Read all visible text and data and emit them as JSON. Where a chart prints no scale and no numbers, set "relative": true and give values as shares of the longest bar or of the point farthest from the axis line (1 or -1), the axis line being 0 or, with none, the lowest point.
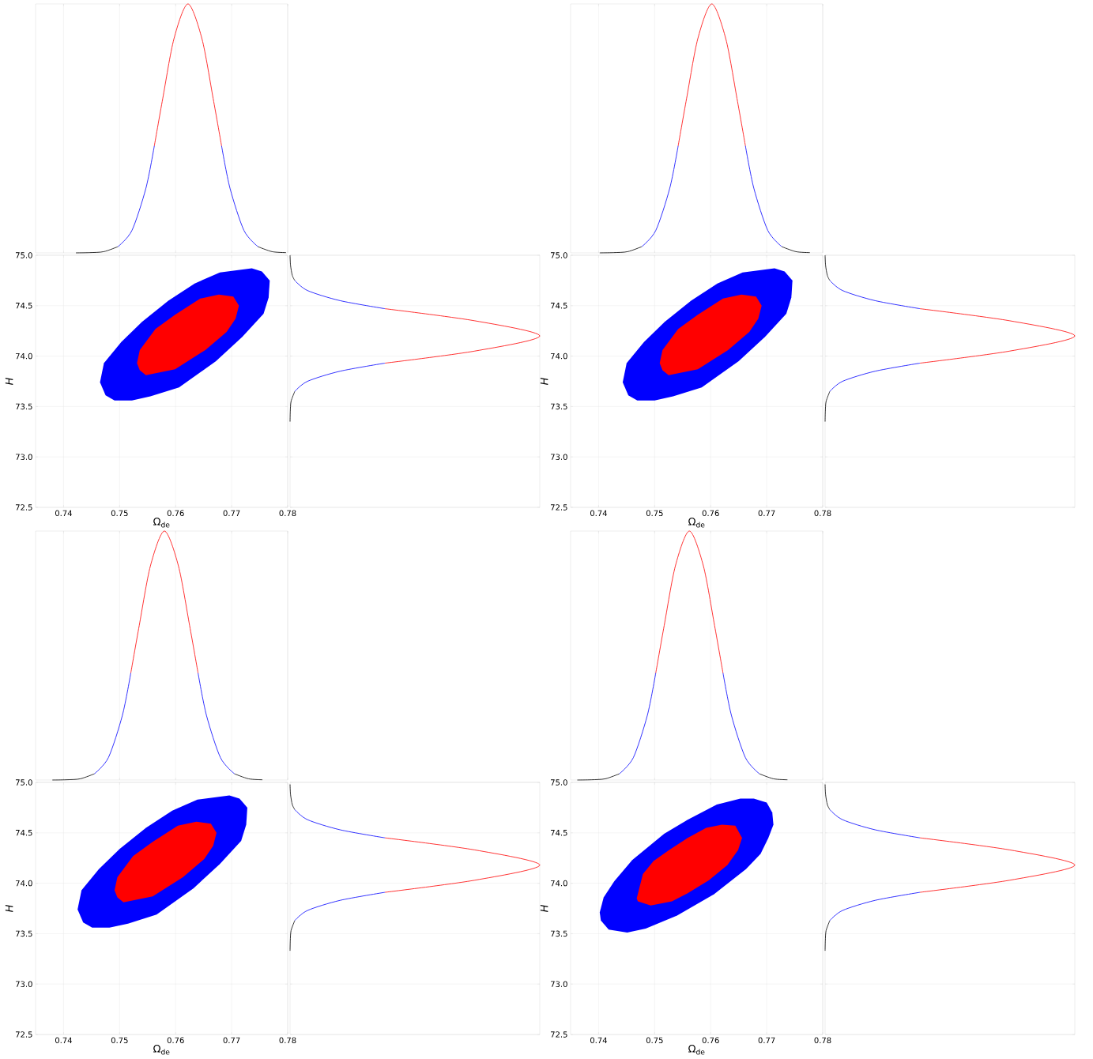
{
  "chart_data": [
    {
      "type": "line",
      "relative": true,
      "xlim": [
        0.735,
        0.78
      ],
      "xticks": [
        0.74,
        0.75,
        0.76,
        0.77,
        0.78
      ],
      "tick_labels": false,
      "grid": "x",
      "x": [
        0.7422,
        0.7447,
        0.7472,
        0.7497,
        0.7522,
        0.7547,
        0.7562,
        0.7577,
        0.7597,
        0.7622,
        0.7647,
        0.7667,
        0.7682,
        0.7697,
        0.7722,
        0.7747,
        0.7772,
        0.7797
      ],
      "series": [
        {
          "color": "#000000",
          "values": [
            0,
            0.001,
            0.005,
            0.025,
            null,
            null,
            null,
            null,
            null,
            null,
            null,
            null,
            null,
            null,
            null,
            0.025,
            0.005,
            0.001
          ]
        },
        {
          "color": "#0000ff",
          "values": [
            null,
            null,
            null,
            0.025,
            0.09,
            0.26,
            0.43,
            null,
            null,
            null,
            null,
            null,
            0.43,
            0.26,
            0.09,
            0.025,
            null,
            null
          ]
        },
        {
          "color": "#ff0000",
          "values": [
            null,
            null,
            null,
            null,
            null,
            null,
            0.43,
            0.62,
            0.86,
            1,
            0.86,
            0.62,
            0.43,
            null,
            null,
            null,
            null,
            null
          ]
        }
      ]
    },
    {
      "type": "area",
      "xlabel": "Ω$_{de}$",
      "ylabel": "H",
      "xlim": [
        0.735,
        0.78
      ],
      "ylim": [
        72.5,
        75.0
      ],
      "xticks": [
        0.74,
        0.75,
        0.76,
        0.77,
        0.78
      ],
      "yticks": [
        72.5,
        {
          "value": 73,
          "label": "73.0"
        },
        73.5,
        {
          "value": 74,
          "label": "74.0"
        },
        74.5,
        {
          "value": 75,
          "label": "75.0"
        }
      ],
      "grid": true,
      "series": [
        {
          "color": "#0000ff",
          "x": [
            0.7465,
            0.7472,
            0.7503,
            0.754,
            0.7587,
            0.7634,
            0.7679,
            0.7736,
            0.7754,
            0.7768,
            0.7766,
            0.7757,
            0.7719,
            0.7672,
            0.7606,
            0.7555,
            0.7522,
            0.7491,
            0.7475
          ],
          "values": [
            73.74,
            73.93,
            74.14,
            74.34,
            74.55,
            74.72,
            74.83,
            74.87,
            74.84,
            74.75,
            74.58,
            74.42,
            74.19,
            73.95,
            73.69,
            73.6,
            73.56,
            73.56,
            73.61
          ]
        },
        {
          "color": "#ff0000",
          "x": [
            0.7531,
            0.7536,
            0.7564,
            0.7599,
            0.7644,
            0.7677,
            0.7703,
            0.7713,
            0.7707,
            0.7691,
            0.7653,
            0.7599,
            0.7573,
            0.7547,
            0.7536
          ],
          "values": [
            73.93,
            74.06,
            74.27,
            74.41,
            74.57,
            74.61,
            74.59,
            74.5,
            74.37,
            74.24,
            74.06,
            73.87,
            73.84,
            73.81,
            73.86
          ]
        }
      ]
    },
    {
      "type": "line",
      "orientation": "horizontal",
      "relative": true,
      "ylim": [
        72.5,
        75.0
      ],
      "yticks": [
        72.5,
        73,
        73.5,
        74,
        74.5,
        75
      ],
      "tick_labels": false,
      "grid": "y",
      "x": [
        75.0,
        74.9,
        74.8,
        74.75,
        74.65,
        74.55,
        74.47,
        74.35,
        74.2,
        74.05,
        73.93,
        73.85,
        73.75,
        73.65,
        73.55,
        73.45,
        73.35
      ],
      "series": [
        {
          "color": "#000000",
          "values": [
            0,
            0.002,
            0.009,
            0.019,
            null,
            null,
            null,
            null,
            null,
            null,
            null,
            null,
            null,
            0.019,
            0.004,
            0.001,
            0
          ]
        },
        {
          "color": "#0000ff",
          "values": [
            null,
            null,
            null,
            0.019,
            0.07,
            0.2,
            0.38,
            null,
            null,
            null,
            0.38,
            0.2,
            0.07,
            0.019,
            null,
            null,
            null
          ]
        },
        {
          "color": "#ff0000",
          "values": [
            null,
            null,
            null,
            null,
            null,
            null,
            0.38,
            0.74,
            1,
            0.74,
            0.38,
            null,
            null,
            null,
            null,
            null,
            null
          ]
        }
      ]
    },
    {
      "type": "line",
      "relative": true,
      "xlim": [
        0.735,
        0.78
      ],
      "xticks": [
        0.74,
        0.75,
        0.76,
        0.77,
        0.78
      ],
      "tick_labels": false,
      "grid": "x",
      "x": [
        0.7402,
        0.7427,
        0.7452,
        0.7477,
        0.7502,
        0.7527,
        0.7542,
        0.7557,
        0.7577,
        0.7602,
        0.7627,
        0.7647,
        0.7662,
        0.7677,
        0.7702,
        0.7727,
        0.7752,
        0.7777
      ],
      "series": [
        {
          "color": "#000000",
          "values": [
            0,
            0.001,
            0.005,
            0.025,
            null,
            null,
            null,
            null,
            null,
            null,
            null,
            null,
            null,
            null,
            null,
            0.025,
            0.005,
            0.001
          ]
        },
        {
          "color": "#0000ff",
          "values": [
            null,
            null,
            null,
            0.025,
            0.09,
            0.26,
            0.43,
            null,
            null,
            null,
            null,
            null,
            0.43,
            0.26,
            0.09,
            0.025,
            null,
            null
          ]
        },
        {
          "color": "#ff0000",
          "values": [
            null,
            null,
            null,
            null,
            null,
            null,
            0.43,
            0.62,
            0.86,
            1,
            0.86,
            0.62,
            0.43,
            null,
            null,
            null,
            null,
            null
          ]
        }
      ]
    },
    {
      "type": "area",
      "xlabel": "Ω$_{de}$",
      "ylabel": "H",
      "xlim": [
        0.735,
        0.78
      ],
      "ylim": [
        72.5,
        75.0
      ],
      "xticks": [
        0.74,
        0.75,
        0.76,
        0.77,
        0.78
      ],
      "yticks": [
        72.5,
        {
          "value": 73,
          "label": "73.0"
        },
        73.5,
        {
          "value": 74,
          "label": "74.0"
        },
        74.5,
        {
          "value": 75,
          "label": "75.0"
        }
      ],
      "grid": true,
      "series": [
        {
          "color": "#0000ff",
          "x": [
            0.7443,
            0.745,
            0.7481,
            0.7518,
            0.7565,
            0.7612,
            0.7657,
            0.7714,
            0.7732,
            0.7746,
            0.7744,
            0.7735,
            0.7697,
            0.765,
            0.7584,
            0.7533,
            0.75,
            0.7469,
            0.7453
          ],
          "values": [
            73.74,
            73.93,
            74.14,
            74.34,
            74.55,
            74.72,
            74.83,
            74.87,
            74.84,
            74.75,
            74.58,
            74.42,
            74.19,
            73.95,
            73.69,
            73.6,
            73.56,
            73.56,
            73.61
          ]
        },
        {
          "color": "#ff0000",
          "x": [
            0.7509,
            0.7514,
            0.7542,
            0.7577,
            0.7622,
            0.7655,
            0.7681,
            0.7691,
            0.7685,
            0.7669,
            0.7631,
            0.7577,
            0.7551,
            0.7525,
            0.7514
          ],
          "values": [
            73.93,
            74.06,
            74.27,
            74.41,
            74.57,
            74.61,
            74.59,
            74.5,
            74.37,
            74.24,
            74.06,
            73.87,
            73.84,
            73.81,
            73.86
          ]
        }
      ]
    },
    {
      "type": "line",
      "orientation": "horizontal",
      "relative": true,
      "ylim": [
        72.5,
        75.0
      ],
      "yticks": [
        72.5,
        73,
        73.5,
        74,
        74.5,
        75
      ],
      "tick_labels": false,
      "grid": "y",
      "x": [
        75.0,
        74.9,
        74.8,
        74.75,
        74.65,
        74.55,
        74.47,
        74.35,
        74.2,
        74.05,
        73.93,
        73.85,
        73.75,
        73.65,
        73.55,
        73.45,
        73.35
      ],
      "series": [
        {
          "color": "#000000",
          "values": [
            0,
            0.002,
            0.009,
            0.019,
            null,
            null,
            null,
            null,
            null,
            null,
            null,
            null,
            null,
            0.019,
            0.004,
            0.001,
            0
          ]
        },
        {
          "color": "#0000ff",
          "values": [
            null,
            null,
            null,
            0.019,
            0.07,
            0.2,
            0.38,
            null,
            null,
            null,
            0.38,
            0.2,
            0.07,
            0.019,
            null,
            null,
            null
          ]
        },
        {
          "color": "#ff0000",
          "values": [
            null,
            null,
            null,
            null,
            null,
            null,
            0.38,
            0.74,
            1,
            0.74,
            0.38,
            null,
            null,
            null,
            null,
            null,
            null
          ]
        }
      ]
    },
    {
      "type": "line",
      "relative": true,
      "xlim": [
        0.735,
        0.78
      ],
      "xticks": [
        0.74,
        0.75,
        0.76,
        0.77,
        0.78
      ],
      "tick_labels": false,
      "grid": "x",
      "x": [
        0.738,
        0.7405,
        0.743,
        0.7455,
        0.748,
        0.7505,
        0.752,
        0.7535,
        0.7555,
        0.758,
        0.7605,
        0.7625,
        0.764,
        0.7655,
        0.768,
        0.7705,
        0.773,
        0.7755
      ],
      "series": [
        {
          "color": "#000000",
          "values": [
            0,
            0.001,
            0.005,
            0.025,
            null,
            null,
            null,
            null,
            null,
            null,
            null,
            null,
            null,
            null,
            null,
            0.025,
            0.005,
            0.001
          ]
        },
        {
          "color": "#0000ff",
          "values": [
            null,
            null,
            null,
            0.025,
            0.09,
            0.26,
            0.43,
            null,
            null,
            null,
            null,
            null,
            0.43,
            0.26,
            0.09,
            0.025,
            null,
            null
          ]
        },
        {
          "color": "#ff0000",
          "values": [
            null,
            null,
            null,
            null,
            null,
            null,
            0.43,
            0.62,
            0.86,
            1,
            0.86,
            0.62,
            0.43,
            null,
            null,
            null,
            null,
            null
          ]
        }
      ]
    },
    {
      "type": "area",
      "xlabel": "Ω$_{de}$",
      "ylabel": "H",
      "xlim": [
        0.735,
        0.78
      ],
      "ylim": [
        72.5,
        75.0
      ],
      "xticks": [
        0.74,
        0.75,
        0.76,
        0.77,
        0.78
      ],
      "yticks": [
        72.5,
        {
          "value": 73,
          "label": "73.0"
        },
        73.5,
        {
          "value": 74,
          "label": "74.0"
        },
        74.5,
        {
          "value": 75,
          "label": "75.0"
        }
      ],
      "grid": true,
      "series": [
        {
          "color": "#0000ff",
          "x": [
            0.7425,
            0.7432,
            0.7463,
            0.75,
            0.7547,
            0.7594,
            0.7639,
            0.7696,
            0.7714,
            0.7728,
            0.7726,
            0.7717,
            0.7679,
            0.7632,
            0.7566,
            0.7515,
            0.7482,
            0.7451,
            0.7435
          ],
          "values": [
            73.74,
            73.93,
            74.14,
            74.34,
            74.55,
            74.72,
            74.83,
            74.87,
            74.84,
            74.75,
            74.58,
            74.42,
            74.19,
            73.95,
            73.69,
            73.6,
            73.56,
            73.56,
            73.61
          ]
        },
        {
          "color": "#ff0000",
          "x": [
            0.7491,
            0.7496,
            0.7524,
            0.7559,
            0.7604,
            0.7637,
            0.7663,
            0.7673,
            0.7667,
            0.7651,
            0.7613,
            0.7559,
            0.7533,
            0.7507,
            0.7496
          ],
          "values": [
            73.93,
            74.06,
            74.27,
            74.41,
            74.57,
            74.61,
            74.59,
            74.5,
            74.37,
            74.24,
            74.06,
            73.87,
            73.84,
            73.81,
            73.86
          ]
        }
      ]
    },
    {
      "type": "line",
      "orientation": "horizontal",
      "relative": true,
      "ylim": [
        72.5,
        75.0
      ],
      "yticks": [
        72.5,
        73,
        73.5,
        74,
        74.5,
        75
      ],
      "tick_labels": false,
      "grid": "y",
      "x": [
        74.98,
        74.88,
        74.78,
        74.73,
        74.63,
        74.53,
        74.45,
        74.33,
        74.18,
        74.03,
        73.91,
        73.83,
        73.73,
        73.63,
        73.53,
        73.43,
        73.33
      ],
      "series": [
        {
          "color": "#000000",
          "values": [
            0,
            0.002,
            0.009,
            0.019,
            null,
            null,
            null,
            null,
            null,
            null,
            null,
            null,
            null,
            0.019,
            0.004,
            0.001,
            0
          ]
        },
        {
          "color": "#0000ff",
          "values": [
            null,
            null,
            null,
            0.019,
            0.07,
            0.2,
            0.38,
            null,
            null,
            null,
            0.38,
            0.2,
            0.07,
            0.019,
            null,
            null,
            null
          ]
        },
        {
          "color": "#ff0000",
          "values": [
            null,
            null,
            null,
            null,
            null,
            null,
            0.38,
            0.74,
            1,
            0.74,
            0.38,
            null,
            null,
            null,
            null,
            null,
            null
          ]
        }
      ]
    },
    {
      "type": "line",
      "relative": true,
      "xlim": [
        0.735,
        0.78
      ],
      "xticks": [
        0.74,
        0.75,
        0.76,
        0.77,
        0.78
      ],
      "tick_labels": false,
      "grid": "x",
      "x": [
        0.7362,
        0.7387,
        0.7412,
        0.7437,
        0.7462,
        0.7487,
        0.7502,
        0.7517,
        0.7537,
        0.7562,
        0.7587,
        0.7607,
        0.7622,
        0.7637,
        0.7662,
        0.7687,
        0.7712,
        0.7737
      ],
      "series": [
        {
          "color": "#000000",
          "values": [
            0,
            0.001,
            0.005,
            0.025,
            null,
            null,
            null,
            null,
            null,
            null,
            null,
            null,
            null,
            null,
            null,
            0.025,
            0.005,
            0.001
          ]
        },
        {
          "color": "#0000ff",
          "values": [
            null,
            null,
            null,
            0.025,
            0.09,
            0.26,
            0.43,
            null,
            null,
            null,
            null,
            null,
            0.43,
            0.26,
            0.09,
            0.025,
            null,
            null
          ]
        },
        {
          "color": "#ff0000",
          "values": [
            null,
            null,
            null,
            null,
            null,
            null,
            0.43,
            0.62,
            0.86,
            1,
            0.86,
            0.62,
            0.43,
            null,
            null,
            null,
            null,
            null
          ]
        }
      ]
    },
    {
      "type": "area",
      "xlabel": "Ω$_{de}$",
      "ylabel": "H",
      "xlim": [
        0.735,
        0.78
      ],
      "ylim": [
        72.5,
        75.0
      ],
      "xticks": [
        0.74,
        0.75,
        0.76,
        0.77,
        0.78
      ],
      "yticks": [
        72.5,
        {
          "value": 73,
          "label": "73.0"
        },
        73.5,
        {
          "value": 74,
          "label": "74.0"
        },
        74.5,
        {
          "value": 75,
          "label": "75.0"
        }
      ],
      "grid": true,
      "series": [
        {
          "color": "#0000ff",
          "x": [
            0.7402,
            0.7409,
            0.7428,
            0.746,
            0.7517,
            0.7559,
            0.7611,
            0.7653,
            0.7677,
            0.77,
            0.771,
            0.7712,
            0.7703,
            0.7689,
            0.7663,
            0.7606,
            0.754,
            0.7484,
            0.7451,
            0.7418,
            0.7404
          ],
          "values": [
            73.71,
            73.86,
            74.02,
            74.23,
            74.49,
            74.63,
            74.78,
            74.84,
            74.84,
            74.8,
            74.7,
            74.58,
            74.45,
            74.29,
            74.14,
            73.89,
            73.68,
            73.55,
            73.51,
            73.54,
            73.63
          ]
        },
        {
          "color": "#ff0000",
          "x": [
            0.7468,
            0.7479,
            0.7498,
            0.7526,
            0.7559,
            0.7592,
            0.762,
            0.7644,
            0.7656,
            0.7649,
            0.763,
            0.7597,
            0.7559,
            0.7531,
            0.7493,
            0.747
          ],
          "values": [
            73.85,
            74.09,
            74.22,
            74.33,
            74.45,
            74.55,
            74.58,
            74.57,
            74.45,
            74.33,
            74.18,
            74.03,
            73.9,
            73.82,
            73.78,
            73.82
          ]
        }
      ]
    },
    {
      "type": "line",
      "orientation": "horizontal",
      "relative": true,
      "ylim": [
        72.5,
        75.0
      ],
      "yticks": [
        72.5,
        73,
        73.5,
        74,
        74.5,
        75
      ],
      "tick_labels": false,
      "grid": "y",
      "x": [
        74.98,
        74.88,
        74.78,
        74.73,
        74.63,
        74.53,
        74.45,
        74.33,
        74.18,
        74.03,
        73.91,
        73.83,
        73.73,
        73.63,
        73.53,
        73.43,
        73.33
      ],
      "series": [
        {
          "color": "#000000",
          "values": [
            0,
            0.002,
            0.009,
            0.019,
            null,
            null,
            null,
            null,
            null,
            null,
            null,
            null,
            null,
            0.019,
            0.004,
            0.001,
            0
          ]
        },
        {
          "color": "#0000ff",
          "values": [
            null,
            null,
            null,
            0.019,
            0.07,
            0.2,
            0.38,
            null,
            null,
            null,
            0.38,
            0.2,
            0.07,
            0.019,
            null,
            null,
            null
          ]
        },
        {
          "color": "#ff0000",
          "values": [
            null,
            null,
            null,
            null,
            null,
            null,
            0.38,
            0.74,
            1,
            0.74,
            0.38,
            null,
            null,
            null,
            null,
            null,
            null
          ]
        }
      ]
    }
  ]
}
